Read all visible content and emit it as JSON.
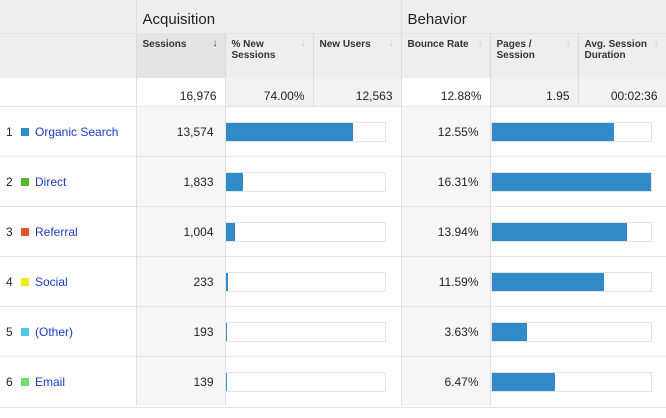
{
  "groups": {
    "acquisition": "Acquisition",
    "behavior": "Behavior"
  },
  "columns": [
    {
      "label": "Sessions",
      "sorted": true,
      "sort_icon": "arrow-down"
    },
    {
      "label": "% New Sessions",
      "sorted": false,
      "sort_icon": "arrow-down"
    },
    {
      "label": "New Users",
      "sorted": false,
      "sort_icon": "arrow-down"
    },
    {
      "label": "Bounce Rate",
      "sorted": false,
      "sort_icon": "arrow-down"
    },
    {
      "label": "Pages / Session",
      "sorted": false,
      "sort_icon": "arrow-down"
    },
    {
      "label": "Avg. Session Duration",
      "sorted": false,
      "sort_icon": "arrow-down"
    }
  ],
  "sort_arrow_glyph": "↓",
  "totals": {
    "sessions": "16,976",
    "pct_new_sessions": "74.00%",
    "new_users": "12,563",
    "bounce_rate": "12.88%",
    "pages_per_session": "1.95",
    "avg_session_duration": "00:02:36"
  },
  "accent_color": "#318bc8",
  "link_color": "#1a3cc4",
  "rows": [
    {
      "index": "1",
      "channel": "Organic Search",
      "swatch": "#318bc8",
      "sessions": "13,574",
      "sessions_share_pct": 79.96,
      "bounce_rate": "12.55%",
      "bounce_bar_pct": 76.95
    },
    {
      "index": "2",
      "channel": "Direct",
      "swatch": "#59b52b",
      "sessions": "1,833",
      "sessions_share_pct": 10.8,
      "bounce_rate": "16.31%",
      "bounce_bar_pct": 100
    },
    {
      "index": "3",
      "channel": "Referral",
      "swatch": "#e3532a",
      "sessions": "1,004",
      "sessions_share_pct": 5.91,
      "bounce_rate": "13.94%",
      "bounce_bar_pct": 85.47
    },
    {
      "index": "4",
      "channel": "Social",
      "swatch": "#eded1c",
      "sessions": "233",
      "sessions_share_pct": 1.37,
      "bounce_rate": "11.59%",
      "bounce_bar_pct": 71.06
    },
    {
      "index": "5",
      "channel": "(Other)",
      "swatch": "#4dc9e4",
      "sessions": "193",
      "sessions_share_pct": 1.14,
      "bounce_rate": "3.63%",
      "bounce_bar_pct": 22.26
    },
    {
      "index": "6",
      "channel": "Email",
      "swatch": "#6ee06c",
      "sessions": "139",
      "sessions_share_pct": 0.82,
      "bounce_rate": "6.47%",
      "bounce_bar_pct": 39.67
    }
  ]
}
